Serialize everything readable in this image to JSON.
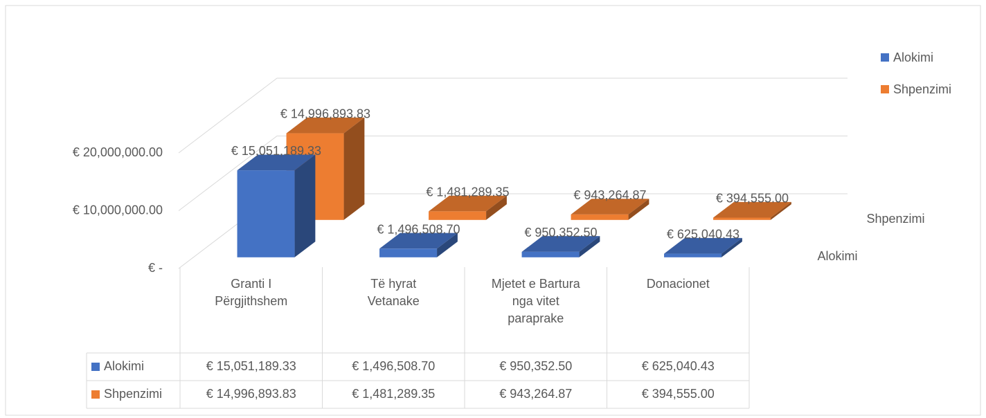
{
  "chart_data": {
    "type": "bar3d",
    "categories": [
      "Granti I Përgjithshem",
      "Të hyrat Vetanake",
      "Mjetet e Bartura nga vitet paraprake",
      "Donacionet"
    ],
    "series": [
      {
        "name": "Alokimi",
        "color": "#4472c4",
        "values": [
          15051189.33,
          1496508.7,
          950352.5,
          625040.43
        ],
        "value_labels": [
          "€ 15,051,189.33",
          "€ 1,496,508.70",
          "€ 950,352.50",
          "€ 625,040.43"
        ]
      },
      {
        "name": "Shpenzimi",
        "color": "#ed7d31",
        "values": [
          14996893.83,
          1481289.35,
          943264.87,
          394555.0
        ],
        "value_labels": [
          "€ 14,996,893.83",
          "€ 1,481,289.35",
          "€ 943,264.87",
          "€ 394,555.00"
        ]
      }
    ],
    "ylim": [
      0,
      20000000
    ],
    "yticks": [
      {
        "value": 0,
        "label": "€ -"
      },
      {
        "value": 10000000,
        "label": "€ 10,000,000.00"
      },
      {
        "value": 20000000,
        "label": "€ 20,000,000.00"
      }
    ],
    "grid": true,
    "legend": "right",
    "data_table": true
  }
}
